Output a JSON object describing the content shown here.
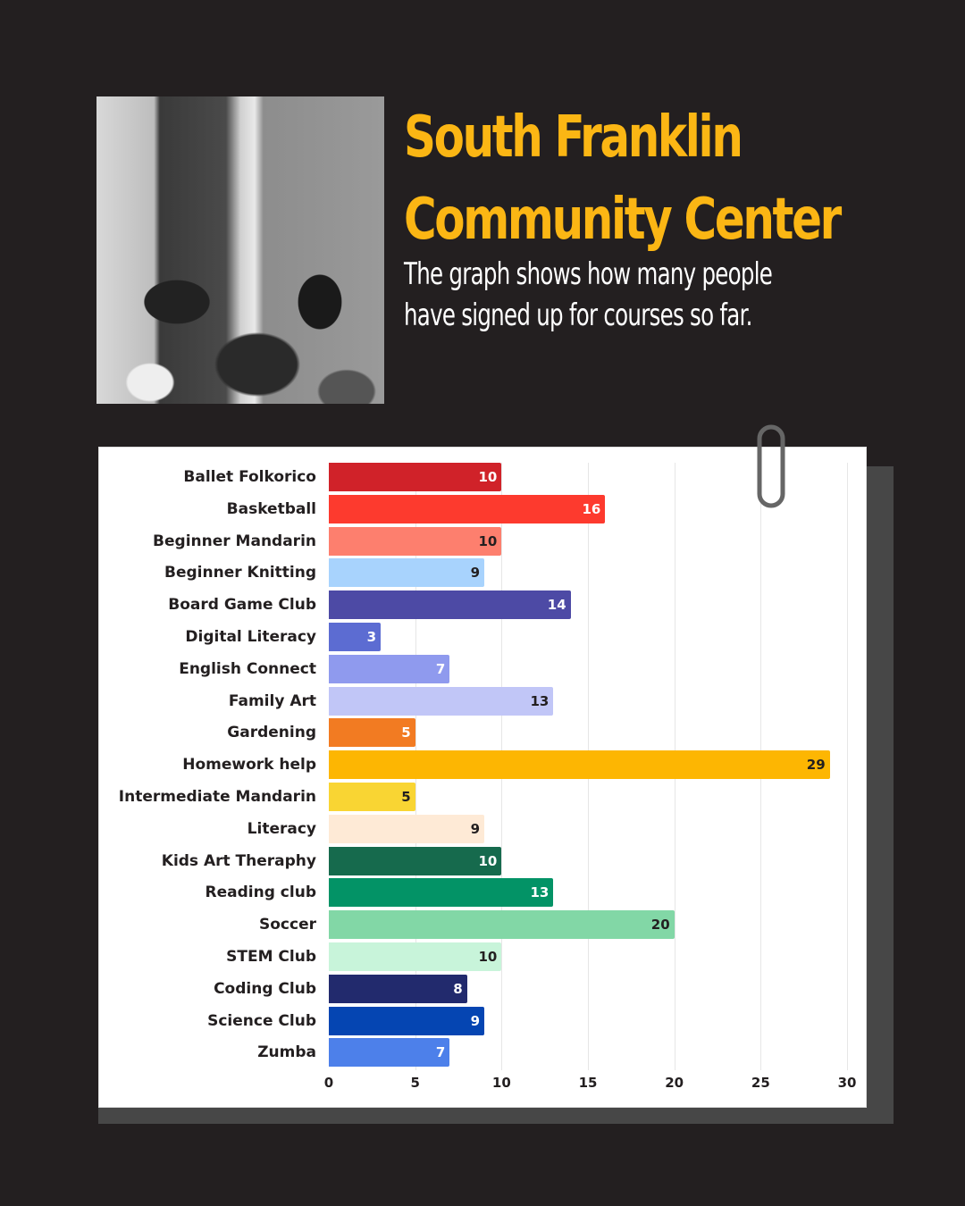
{
  "header": {
    "title_line1": "South Franklin",
    "title_line2": "Community Center",
    "subtitle_line1": "The graph shows how many people",
    "subtitle_line2": "have signed up for courses so far."
  },
  "photo": {
    "description": "black-and-white photo of children celebrating with an instructor raising arms"
  },
  "colors": {
    "background": "#231f20",
    "title": "#fbb614",
    "subtitle": "#ffffff",
    "card": "#ffffff"
  },
  "chart_data": {
    "type": "bar",
    "orientation": "horizontal",
    "title": "",
    "xlabel": "",
    "ylabel": "",
    "xlim": [
      0,
      30
    ],
    "ticks": [
      0,
      5,
      10,
      15,
      20,
      25,
      30
    ],
    "tick_labels": [
      "0",
      "5",
      "10",
      "15",
      "20",
      "25",
      "30"
    ],
    "grid": true,
    "legend": null,
    "data_labels": true,
    "categories": [
      "Ballet Folkorico",
      "Basketball",
      "Beginner Mandarin",
      "Beginner Knitting",
      "Board Game Club",
      "Digital Literacy",
      "English Connect",
      "Family Art",
      "Gardening",
      "Homework help",
      "Intermediate Mandarin",
      "Literacy",
      "Kids Art Theraphy",
      "Reading club",
      "Soccer",
      "STEM Club",
      "Coding Club",
      "Science Club",
      "Zumba"
    ],
    "values": [
      10,
      16,
      10,
      9,
      14,
      3,
      7,
      13,
      5,
      29,
      5,
      9,
      10,
      13,
      20,
      10,
      8,
      9,
      7
    ],
    "bar_colors": [
      "#d02229",
      "#fd3a2e",
      "#fd7f6e",
      "#a8d3fd",
      "#4d4aa5",
      "#5c6cd2",
      "#8f9aee",
      "#c1c6f7",
      "#f27b22",
      "#fdb602",
      "#f9d533",
      "#feead6",
      "#166a4d",
      "#039366",
      "#82d7a6",
      "#c8f4da",
      "#222a6d",
      "#0545b2",
      "#4d80ea"
    ],
    "label_colors": [
      "#ffffff",
      "#ffffff",
      "#231f20",
      "#231f20",
      "#ffffff",
      "#ffffff",
      "#ffffff",
      "#231f20",
      "#ffffff",
      "#231f20",
      "#231f20",
      "#231f20",
      "#ffffff",
      "#ffffff",
      "#231f20",
      "#231f20",
      "#ffffff",
      "#ffffff",
      "#ffffff"
    ]
  }
}
